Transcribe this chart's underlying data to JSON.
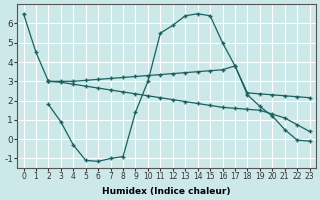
{
  "background_color": "#cce8e8",
  "grid_color": "#ffffff",
  "line_color": "#1a6060",
  "marker": "+",
  "xlabel": "Humidex (Indice chaleur)",
  "ylim": [
    -1.5,
    7.0
  ],
  "xlim": [
    -0.5,
    23.5
  ],
  "yticks": [
    -1,
    0,
    1,
    2,
    3,
    4,
    5,
    6
  ],
  "xticks": [
    0,
    1,
    2,
    3,
    4,
    5,
    6,
    7,
    8,
    9,
    10,
    11,
    12,
    13,
    14,
    15,
    16,
    17,
    18,
    19,
    20,
    21,
    22,
    23
  ],
  "lines": [
    {
      "x": [
        0,
        1,
        2
      ],
      "y": [
        6.5,
        4.5,
        3.0
      ]
    },
    {
      "x": [
        2,
        3,
        4,
        5,
        6,
        7,
        8,
        9,
        10,
        11,
        12,
        13,
        14,
        15,
        16,
        17,
        18,
        19,
        20,
        21,
        22,
        23
      ],
      "y": [
        1.8,
        0.9,
        -0.3,
        -1.1,
        -1.15,
        -1.0,
        -0.9,
        1.4,
        3.0,
        5.5,
        5.9,
        6.4,
        6.5,
        6.4,
        5.0,
        3.8,
        2.3,
        1.7,
        1.2,
        0.5,
        -0.05,
        -0.1
      ]
    },
    {
      "x": [
        2,
        3,
        4,
        5,
        6,
        7,
        8,
        9,
        10,
        11,
        12,
        13,
        14,
        15,
        16,
        17,
        18,
        19,
        20,
        21,
        22,
        23
      ],
      "y": [
        3.0,
        3.0,
        3.0,
        3.05,
        3.1,
        3.15,
        3.2,
        3.25,
        3.3,
        3.35,
        3.4,
        3.45,
        3.5,
        3.55,
        3.6,
        3.8,
        2.4,
        2.35,
        2.3,
        2.25,
        2.2,
        2.15
      ]
    },
    {
      "x": [
        2,
        3,
        4,
        5,
        6,
        7,
        8,
        9,
        10,
        11,
        12,
        13,
        14,
        15,
        16,
        17,
        18,
        19,
        20,
        21,
        22,
        23
      ],
      "y": [
        3.0,
        2.95,
        2.85,
        2.75,
        2.65,
        2.55,
        2.45,
        2.35,
        2.25,
        2.15,
        2.05,
        1.95,
        1.85,
        1.75,
        1.65,
        1.6,
        1.55,
        1.5,
        1.3,
        1.1,
        0.75,
        0.4
      ]
    }
  ]
}
